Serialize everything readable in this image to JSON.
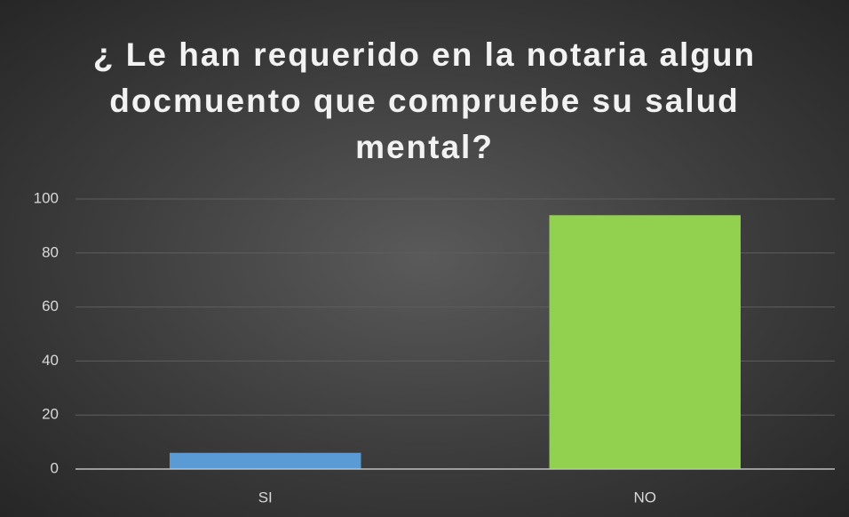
{
  "chart_data": {
    "type": "bar",
    "title": "¿ Le han requerido en la notaria algun docmuento que compruebe su salud mental?",
    "categories": [
      "SI",
      "NO"
    ],
    "values": [
      6,
      94
    ],
    "colors": [
      "#5b9bd5",
      "#92d050"
    ],
    "ylim": [
      0,
      100
    ],
    "yticks": [
      0,
      20,
      40,
      60,
      80,
      100
    ],
    "grid": true
  }
}
